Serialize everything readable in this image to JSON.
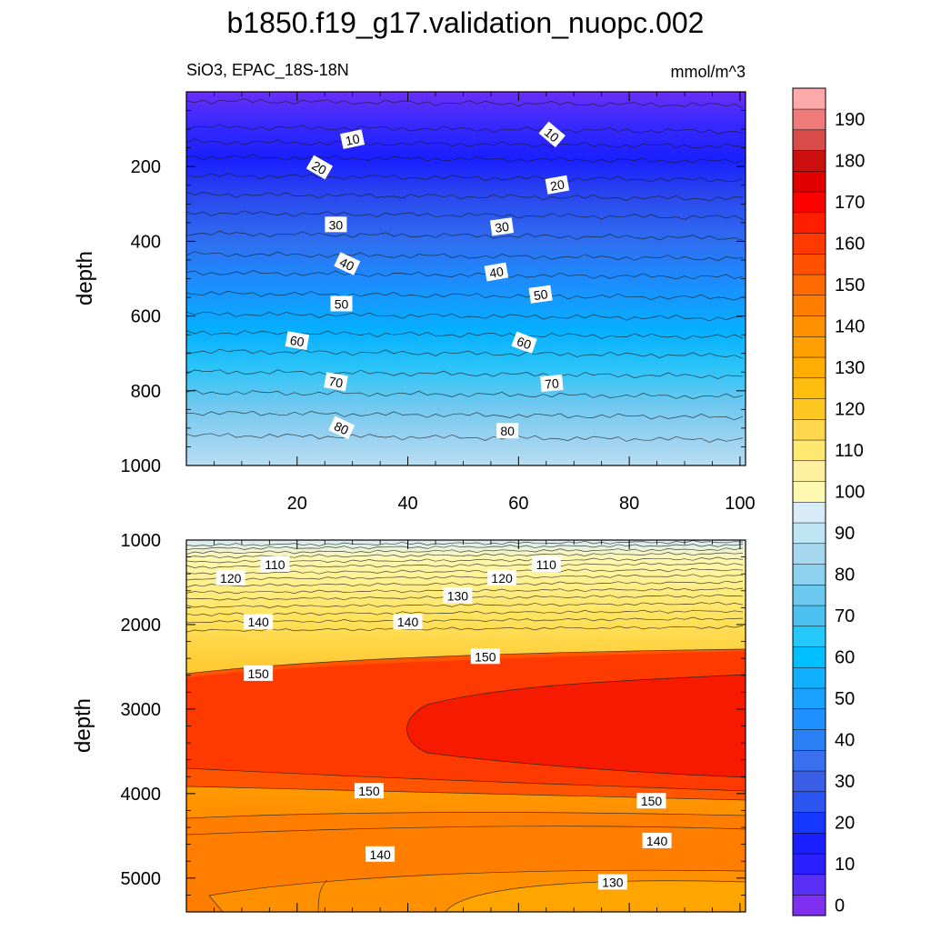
{
  "title": "b1850.f19_g17.validation_nuopc.002",
  "chart_data": [
    {
      "type": "contour",
      "panel": "upper",
      "subtitle_left": "SiO3, EPAC_18S-18N",
      "subtitle_right": "mmol/m^3",
      "xlabel": "",
      "ylabel": "depth",
      "x_range": [
        0,
        101
      ],
      "y_range": [
        0,
        1000
      ],
      "y_inverted": true,
      "x_ticks": [
        20,
        40,
        60,
        80,
        100
      ],
      "y_ticks": [
        200,
        400,
        600,
        800,
        1000
      ],
      "x_tick_labels": [
        "20",
        "40",
        "60",
        "80",
        "100"
      ],
      "y_tick_labels": [
        "200",
        "400",
        "600",
        "800",
        "1000"
      ],
      "contour_levels_at_depth": [
        {
          "value": 0,
          "depth": 30
        },
        {
          "value": 5,
          "depth": 100
        },
        {
          "value": 10,
          "depth": 140
        },
        {
          "value": 15,
          "depth": 180
        },
        {
          "value": 20,
          "depth": 230
        },
        {
          "value": 25,
          "depth": 280
        },
        {
          "value": 30,
          "depth": 330
        },
        {
          "value": 35,
          "depth": 385
        },
        {
          "value": 40,
          "depth": 440
        },
        {
          "value": 45,
          "depth": 490
        },
        {
          "value": 50,
          "depth": 545
        },
        {
          "value": 55,
          "depth": 600
        },
        {
          "value": 60,
          "depth": 650
        },
        {
          "value": 65,
          "depth": 700
        },
        {
          "value": 70,
          "depth": 755
        },
        {
          "value": 75,
          "depth": 810
        },
        {
          "value": 80,
          "depth": 865
        },
        {
          "value": 85,
          "depth": 925
        }
      ],
      "contour_labels": [
        {
          "text": "10",
          "x": 30,
          "depth": 128,
          "angle": -12
        },
        {
          "text": "10",
          "x": 66,
          "depth": 115,
          "angle": 40
        },
        {
          "text": "20",
          "x": 24,
          "depth": 203,
          "angle": 30
        },
        {
          "text": "20",
          "x": 67,
          "depth": 250,
          "angle": -10
        },
        {
          "text": "30",
          "x": 27,
          "depth": 356,
          "angle": 0
        },
        {
          "text": "30",
          "x": 57,
          "depth": 362,
          "angle": -8
        },
        {
          "text": "40",
          "x": 29,
          "depth": 461,
          "angle": 25
        },
        {
          "text": "40",
          "x": 56,
          "depth": 483,
          "angle": -10
        },
        {
          "text": "50",
          "x": 28,
          "depth": 568,
          "angle": 0
        },
        {
          "text": "50",
          "x": 64,
          "depth": 543,
          "angle": -8
        },
        {
          "text": "60",
          "x": 20,
          "depth": 667,
          "angle": 10
        },
        {
          "text": "60",
          "x": 61,
          "depth": 672,
          "angle": 20
        },
        {
          "text": "70",
          "x": 27,
          "depth": 777,
          "angle": 10
        },
        {
          "text": "70",
          "x": 66,
          "depth": 781,
          "angle": -5
        },
        {
          "text": "80",
          "x": 28,
          "depth": 900,
          "angle": 25
        },
        {
          "text": "80",
          "x": 58,
          "depth": 908,
          "angle": 0
        }
      ]
    },
    {
      "type": "contour",
      "panel": "lower",
      "xlabel": "",
      "ylabel": "depth",
      "x_range": [
        0,
        101
      ],
      "y_range": [
        1000,
        5400
      ],
      "y_inverted": true,
      "y_ticks": [
        1000,
        2000,
        3000,
        4000,
        5000
      ],
      "y_tick_labels": [
        "1000",
        "2000",
        "3000",
        "4000",
        "5000"
      ],
      "contour_labels": [
        {
          "text": "110",
          "x": 16,
          "depth": 1290
        },
        {
          "text": "120",
          "x": 8,
          "depth": 1450
        },
        {
          "text": "110",
          "x": 65,
          "depth": 1290
        },
        {
          "text": "120",
          "x": 57,
          "depth": 1450
        },
        {
          "text": "130",
          "x": 49,
          "depth": 1660
        },
        {
          "text": "140",
          "x": 13,
          "depth": 1970
        },
        {
          "text": "140",
          "x": 40,
          "depth": 1970
        },
        {
          "text": "150",
          "x": 13,
          "depth": 2580
        },
        {
          "text": "150",
          "x": 54,
          "depth": 2380
        },
        {
          "text": "150",
          "x": 33,
          "depth": 3970
        },
        {
          "text": "150",
          "x": 84,
          "depth": 4090
        },
        {
          "text": "140",
          "x": 35,
          "depth": 4720
        },
        {
          "text": "140",
          "x": 85,
          "depth": 4560
        },
        {
          "text": "130",
          "x": 77,
          "depth": 5050
        }
      ],
      "regions_description": "120-130 near 1000-2000 m; 140-150 band 2000-2700 m; 150-160 core west 2700-3700 m; >160 core east 3000-3700 m x>40; 140-150 below 4000 m; 130-140 bottom"
    }
  ],
  "colorbar": {
    "levels": [
      0,
      5,
      10,
      15,
      20,
      25,
      30,
      35,
      40,
      45,
      50,
      55,
      60,
      65,
      70,
      75,
      80,
      85,
      90,
      95,
      100,
      105,
      110,
      115,
      120,
      125,
      130,
      135,
      140,
      145,
      150,
      155,
      160,
      165,
      170,
      175,
      180,
      185,
      190,
      195
    ],
    "tick_labels": [
      "0",
      "10",
      "20",
      "30",
      "40",
      "50",
      "60",
      "70",
      "80",
      "90",
      "100",
      "110",
      "120",
      "130",
      "140",
      "150",
      "160",
      "170",
      "180",
      "190"
    ],
    "colors": [
      "#7f2fef",
      "#5a2ff5",
      "#2a1fff",
      "#1a1fff",
      "#1438ff",
      "#2a55f0",
      "#3a5ee6",
      "#3a6ff0",
      "#2a80f5",
      "#1f90ff",
      "#1aa0ff",
      "#10b0ff",
      "#00bfff",
      "#25c8fa",
      "#4cc0f0",
      "#6dc8f0",
      "#8ed0f0",
      "#a6d8f0",
      "#bfe4f4",
      "#d8ecf8",
      "#fff8b0",
      "#fff0a0",
      "#ffe870",
      "#ffd850",
      "#ffc820",
      "#ffbd10",
      "#ffae00",
      "#ffa000",
      "#ff9000",
      "#ff7e00",
      "#ff6a00",
      "#ff5000",
      "#ff3a00",
      "#ff1f00",
      "#ff0000",
      "#e00000",
      "#cc0f0f",
      "#d94a4a",
      "#ee7a7a",
      "#ffaaaa"
    ]
  }
}
